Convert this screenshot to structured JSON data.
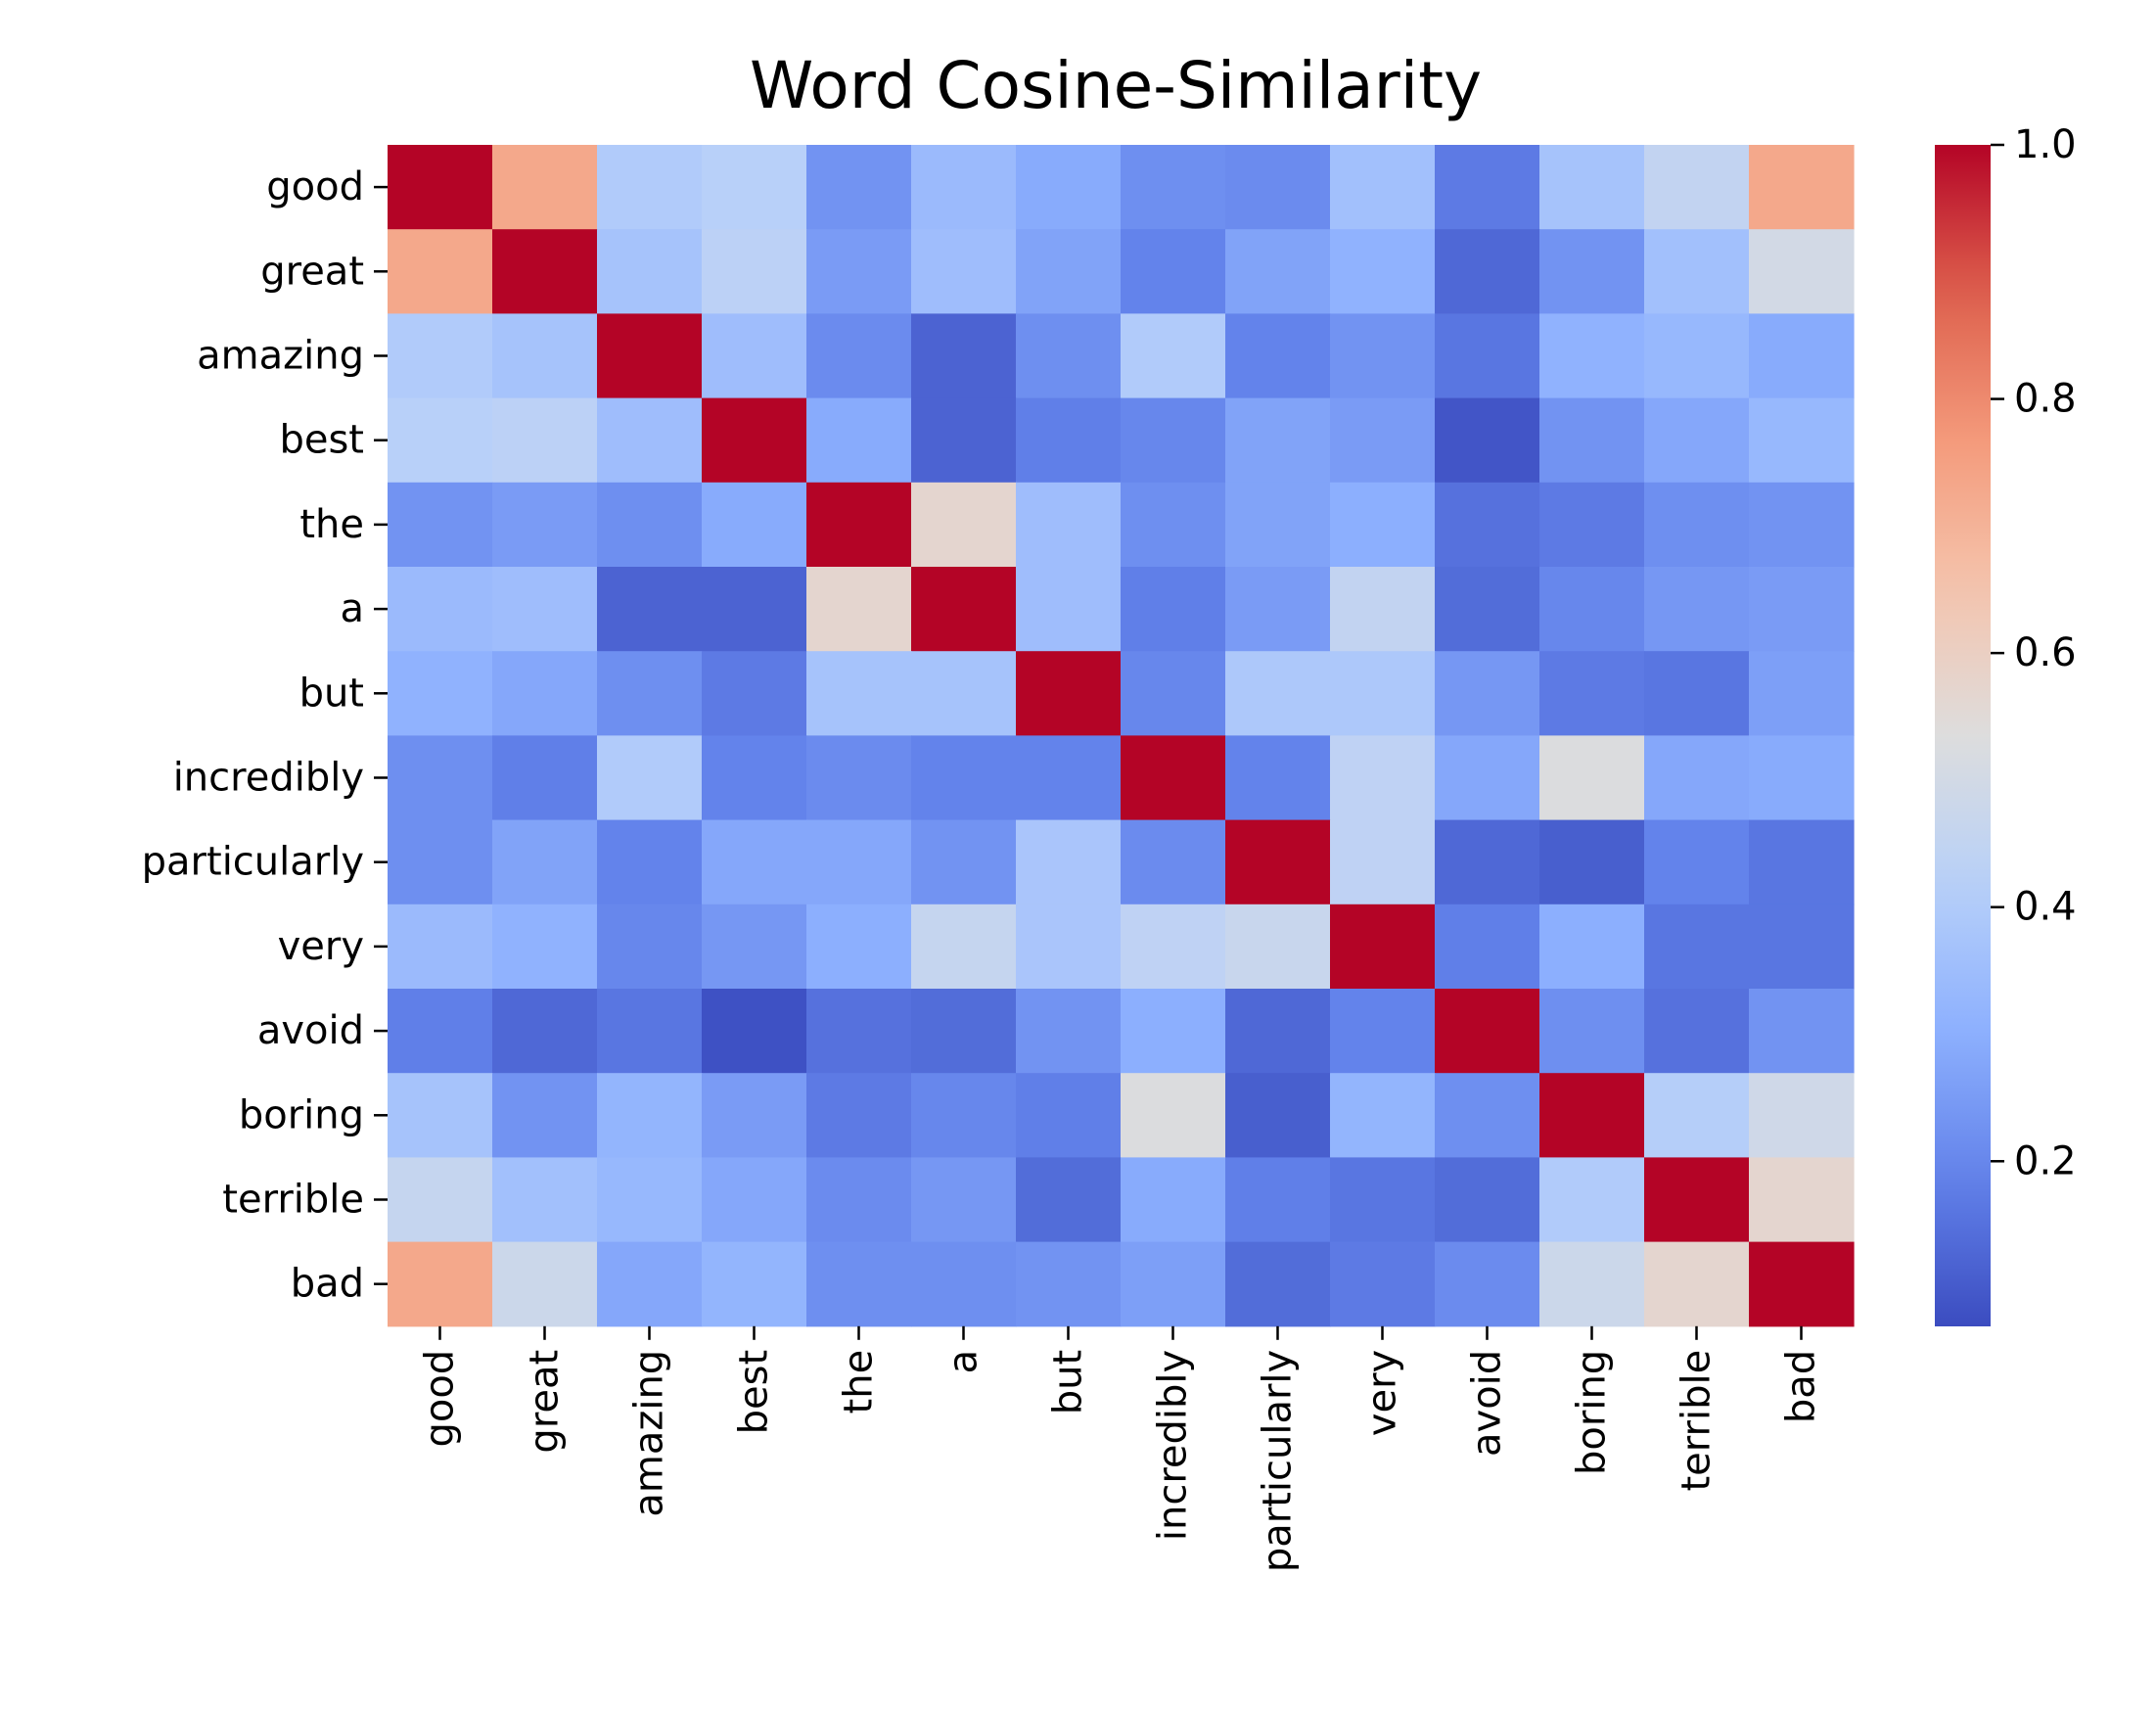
{
  "chart_data": {
    "type": "heatmap",
    "title": "Word Cosine-Similarity",
    "xlabel": "",
    "ylabel": "",
    "colormap": "coolwarm",
    "colorbar": {
      "range": [
        0.07,
        1.0
      ],
      "ticks": [
        0.2,
        0.4,
        0.6,
        0.8,
        1.0
      ],
      "tick_labels": [
        "0.2",
        "0.4",
        "0.6",
        "0.8",
        "1.0"
      ]
    },
    "rows": [
      "good",
      "great",
      "amazing",
      "best",
      "the",
      "a",
      "but",
      "incredibly",
      "particularly",
      "very",
      "avoid",
      "boring",
      "terrible",
      "bad"
    ],
    "columns": [
      "good",
      "great",
      "amazing",
      "best",
      "the",
      "a",
      "but",
      "incredibly",
      "particularly",
      "very",
      "avoid",
      "boring",
      "terrible",
      "bad"
    ],
    "values": [
      [
        1.0,
        0.73,
        0.4,
        0.42,
        0.23,
        0.34,
        0.29,
        0.22,
        0.21,
        0.36,
        0.17,
        0.37,
        0.45,
        0.73
      ],
      [
        0.73,
        1.0,
        0.37,
        0.43,
        0.25,
        0.35,
        0.27,
        0.19,
        0.27,
        0.31,
        0.13,
        0.23,
        0.36,
        0.5
      ],
      [
        0.4,
        0.37,
        1.0,
        0.35,
        0.21,
        0.12,
        0.22,
        0.4,
        0.19,
        0.23,
        0.16,
        0.31,
        0.33,
        0.29
      ],
      [
        0.42,
        0.43,
        0.35,
        1.0,
        0.29,
        0.12,
        0.18,
        0.2,
        0.27,
        0.25,
        0.09,
        0.23,
        0.28,
        0.33
      ],
      [
        0.23,
        0.25,
        0.22,
        0.29,
        1.0,
        0.57,
        0.35,
        0.22,
        0.27,
        0.3,
        0.15,
        0.17,
        0.22,
        0.23
      ],
      [
        0.34,
        0.35,
        0.12,
        0.12,
        0.57,
        1.0,
        0.35,
        0.18,
        0.25,
        0.45,
        0.14,
        0.2,
        0.24,
        0.25
      ],
      [
        0.31,
        0.28,
        0.22,
        0.17,
        0.37,
        0.37,
        1.0,
        0.2,
        0.39,
        0.39,
        0.24,
        0.17,
        0.16,
        0.26
      ],
      [
        0.22,
        0.18,
        0.4,
        0.19,
        0.21,
        0.19,
        0.19,
        1.0,
        0.19,
        0.44,
        0.28,
        0.53,
        0.28,
        0.29
      ],
      [
        0.22,
        0.27,
        0.19,
        0.28,
        0.28,
        0.23,
        0.38,
        0.21,
        1.0,
        0.44,
        0.13,
        0.11,
        0.19,
        0.16
      ],
      [
        0.34,
        0.31,
        0.2,
        0.24,
        0.3,
        0.46,
        0.38,
        0.44,
        0.47,
        1.0,
        0.18,
        0.3,
        0.16,
        0.16
      ],
      [
        0.18,
        0.13,
        0.16,
        0.08,
        0.15,
        0.14,
        0.23,
        0.3,
        0.13,
        0.19,
        1.0,
        0.22,
        0.15,
        0.23
      ],
      [
        0.37,
        0.23,
        0.32,
        0.25,
        0.17,
        0.2,
        0.18,
        0.53,
        0.11,
        0.32,
        0.22,
        1.0,
        0.41,
        0.49
      ],
      [
        0.46,
        0.36,
        0.33,
        0.28,
        0.21,
        0.24,
        0.14,
        0.29,
        0.18,
        0.16,
        0.14,
        0.4,
        1.0,
        0.57
      ],
      [
        0.73,
        0.48,
        0.28,
        0.32,
        0.22,
        0.22,
        0.23,
        0.26,
        0.14,
        0.17,
        0.21,
        0.48,
        0.57,
        1.0
      ]
    ]
  }
}
